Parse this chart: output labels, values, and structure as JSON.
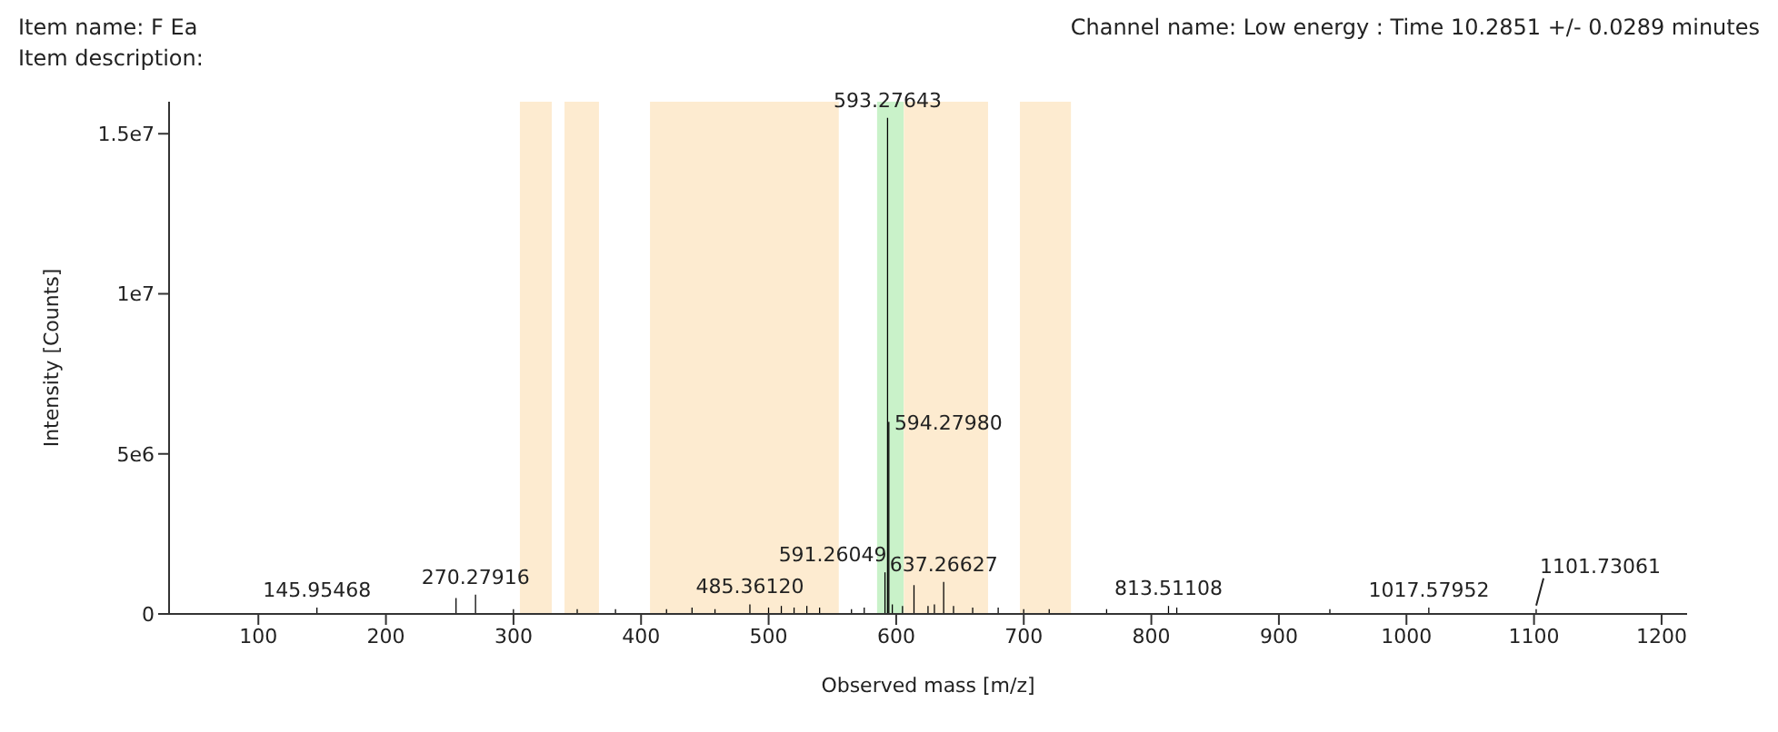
{
  "chart_data": {
    "type": "bar",
    "title": "Item name: F Ea",
    "subtitle": "Item description:",
    "annotations": [
      "Channel name: Low energy : Time 10.2851 +/- 0.0289 minutes",
      {
        "text": "145.95468",
        "x": 145.95468,
        "y": 200000
      },
      {
        "text": "270.27916",
        "x": 270.27916,
        "y": 600000
      },
      {
        "text": "485.36120",
        "x": 485.3612,
        "y": 300000
      },
      {
        "text": "591.26049",
        "x": 591.26049,
        "y": 1300000
      },
      {
        "text": "593.27643",
        "x": 593.27643,
        "y": 15500000
      },
      {
        "text": "594.27980",
        "x": 594.2798,
        "y": 6000000
      },
      {
        "text": "637.26627",
        "x": 637.26627,
        "y": 1000000
      },
      {
        "text": "813.51108",
        "x": 813.51108,
        "y": 250000
      },
      {
        "text": "1017.57952",
        "x": 1017.57952,
        "y": 200000
      },
      {
        "text": "1101.73061",
        "x": 1101.73061,
        "y": 150000
      }
    ],
    "xlabel": "Observed mass [m/z]",
    "ylabel": "Intensity [Counts]",
    "xlim": [
      30,
      1220
    ],
    "xticks": [
      100,
      200,
      300,
      400,
      500,
      600,
      700,
      800,
      900,
      1000,
      1100,
      1200
    ],
    "ylim": [
      0,
      16000000
    ],
    "yticks": [
      0,
      {
        "value": 5000000,
        "label": "5e6"
      },
      {
        "value": 10000000,
        "label": "1e7"
      },
      {
        "value": 15000000,
        "label": "1.5e7"
      }
    ],
    "grid": false,
    "legend": false,
    "bands": [
      {
        "axis": "x",
        "from": 305,
        "to": 330,
        "color": "#fdebd0"
      },
      {
        "axis": "x",
        "from": 340,
        "to": 367,
        "color": "#fdebd0"
      },
      {
        "axis": "x",
        "from": 407,
        "to": 555,
        "color": "#fdebd0"
      },
      {
        "axis": "x",
        "from": 585,
        "to": 606,
        "color": "#c9f2c9"
      },
      {
        "axis": "x",
        "from": 606,
        "to": 672,
        "color": "#fdebd0"
      },
      {
        "axis": "x",
        "from": 697,
        "to": 737,
        "color": "#fdebd0"
      }
    ],
    "x": [
      145.95468,
      255,
      270.27916,
      300,
      350,
      380,
      420,
      440,
      458,
      485.3612,
      500,
      510,
      520,
      530,
      540,
      565,
      575,
      591.26049,
      593.27643,
      594.2798,
      597,
      605,
      614,
      625,
      630,
      637.26627,
      645,
      660,
      680,
      700,
      720,
      765,
      813.51108,
      820,
      940,
      1017.57952,
      1101.73061
    ],
    "series": [
      {
        "color": "#000000",
        "values": [
          200000,
          500000,
          600000,
          150000,
          150000,
          150000,
          150000,
          200000,
          150000,
          300000,
          200000,
          250000,
          200000,
          250000,
          200000,
          150000,
          200000,
          1300000,
          15500000,
          6000000,
          300000,
          250000,
          900000,
          250000,
          300000,
          1000000,
          250000,
          200000,
          200000,
          150000,
          150000,
          150000,
          250000,
          200000,
          150000,
          200000,
          150000
        ]
      }
    ]
  }
}
